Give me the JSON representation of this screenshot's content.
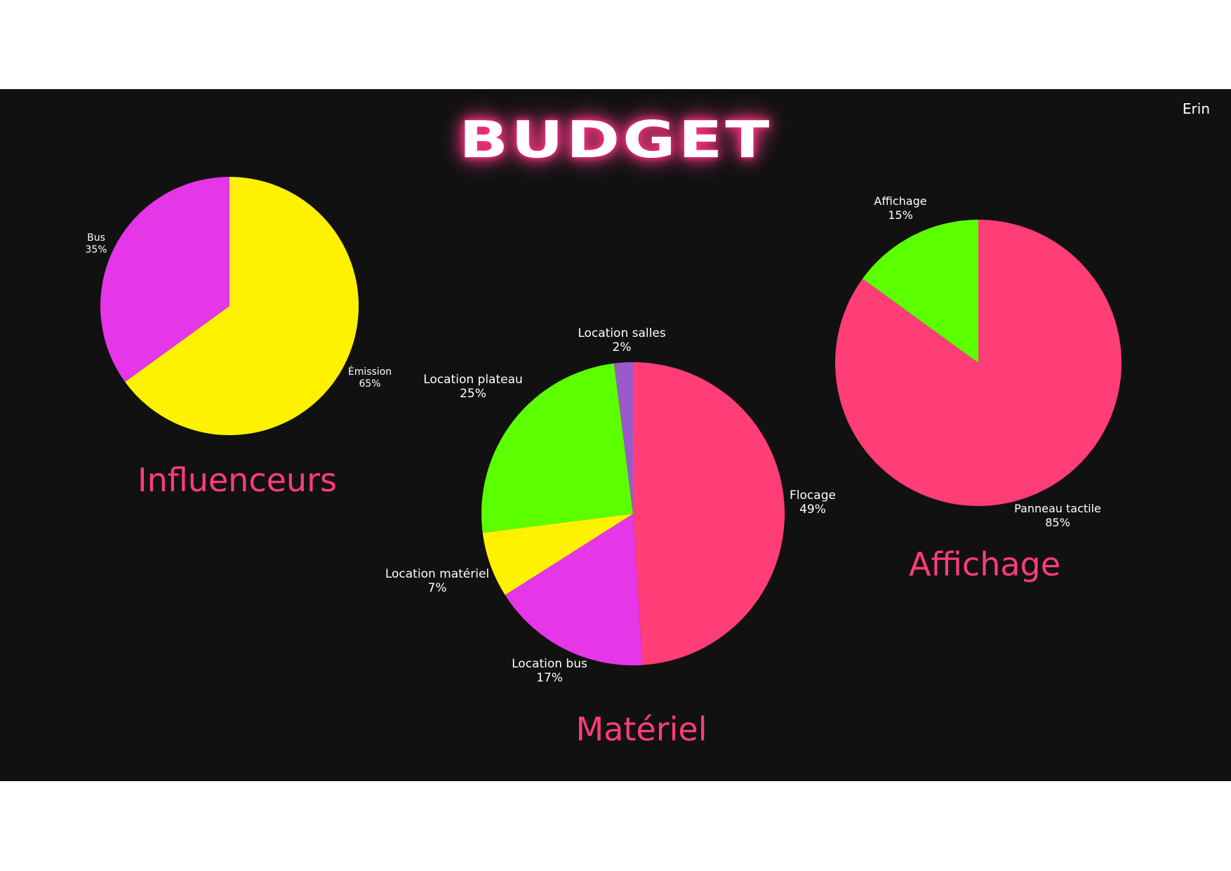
{
  "slide": {
    "title": "BUDGET",
    "author": "Erin"
  },
  "colors": {
    "background": "#111111",
    "title_glow": "#ff2f7d",
    "caption": "#ff3d77",
    "pink": "#ff3d77",
    "magenta": "#e536e8",
    "yellow": "#fff200",
    "green": "#5cff00",
    "purple": "#9b59c9"
  },
  "chart_data": [
    {
      "type": "pie",
      "title": "Influenceurs",
      "slices": [
        {
          "label": "Émission",
          "value": 65,
          "display": "65%",
          "color": "#fff200"
        },
        {
          "label": "Bus",
          "value": 35,
          "display": "35%",
          "color": "#e536e8"
        }
      ]
    },
    {
      "type": "pie",
      "title": "Matériel",
      "slices": [
        {
          "label": "Flocage",
          "value": 49,
          "display": "49%",
          "color": "#ff3d77"
        },
        {
          "label": "Location bus",
          "value": 17,
          "display": "17%",
          "color": "#e536e8"
        },
        {
          "label": "Location matériel",
          "value": 7,
          "display": "7%",
          "color": "#fff200"
        },
        {
          "label": "Location plateau",
          "value": 25,
          "display": "25%",
          "color": "#5cff00"
        },
        {
          "label": "Location salles",
          "value": 2,
          "display": "2%",
          "color": "#9b59c9"
        }
      ]
    },
    {
      "type": "pie",
      "title": "Affichage",
      "slices": [
        {
          "label": "Panneau tactile",
          "value": 85,
          "display": "85%",
          "color": "#ff3d77"
        },
        {
          "label": "Affichage",
          "value": 15,
          "display": "15%",
          "color": "#5cff00"
        }
      ]
    }
  ]
}
